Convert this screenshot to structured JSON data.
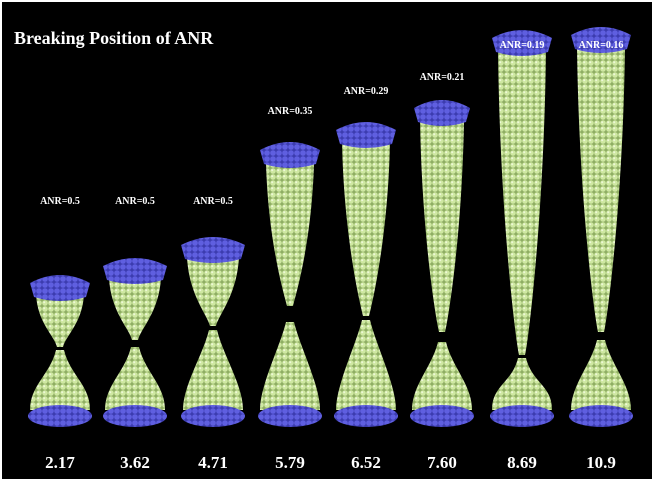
{
  "title": "Breaking Position of ANR",
  "panels": [
    {
      "anr": "ANR=0.5",
      "strain": "2.17"
    },
    {
      "anr": "ANR=0.5",
      "strain": "3.62"
    },
    {
      "anr": "ANR=0.5",
      "strain": "4.71"
    },
    {
      "anr": "ANR=0.35",
      "strain": "5.79"
    },
    {
      "anr": "ANR=0.29",
      "strain": "6.52"
    },
    {
      "anr": "ANR=0.21",
      "strain": "7.60"
    },
    {
      "anr": "ANR=0.19",
      "strain": "8.69"
    },
    {
      "anr": "ANR=0.16",
      "strain": "10.9"
    }
  ]
}
